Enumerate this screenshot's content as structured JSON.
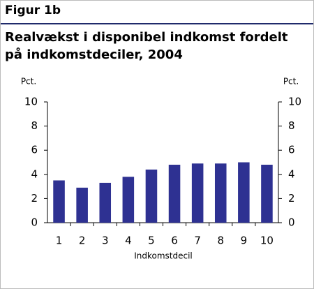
{
  "chart_data": {
    "type": "bar",
    "figure_label": "Figur 1b",
    "title": "Realvækst i disponibel indkomst fordelt på indkomstdeciler, 2004",
    "y_label": "Pct.",
    "y2_label": "Pct.",
    "x_label": "Indkomstdecil",
    "categories": [
      "1",
      "2",
      "3",
      "4",
      "5",
      "6",
      "7",
      "8",
      "9",
      "10"
    ],
    "values": [
      3.5,
      2.9,
      3.3,
      3.8,
      4.4,
      4.8,
      4.9,
      4.9,
      5.0,
      4.8
    ],
    "color": "#2e3192",
    "ylim": [
      0,
      10
    ],
    "yticks": [
      0,
      2,
      4,
      6,
      8,
      10
    ],
    "y2lim": [
      0,
      10
    ],
    "y2ticks": [
      0,
      2,
      4,
      6,
      8,
      10
    ],
    "grid": false
  }
}
